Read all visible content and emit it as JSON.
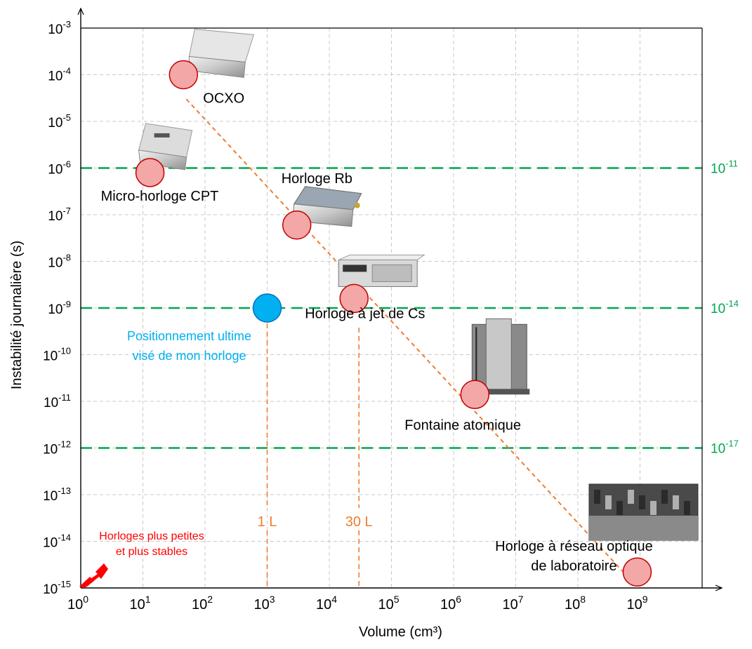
{
  "chart_data": {
    "type": "scatter",
    "xscale": "log",
    "yscale": "log",
    "xlim": [
      1,
      10000000000.0
    ],
    "ylim": [
      1e-15,
      0.001
    ],
    "grid": true,
    "xlabel": "Volume (cm³)",
    "ylabel": "Instabilité journalière (s)",
    "x_ticks": [
      {
        "base": "10",
        "exp": "0",
        "value": 1
      },
      {
        "base": "10",
        "exp": "1",
        "value": 10
      },
      {
        "base": "10",
        "exp": "2",
        "value": 100
      },
      {
        "base": "10",
        "exp": "3",
        "value": 1000
      },
      {
        "base": "10",
        "exp": "4",
        "value": 10000
      },
      {
        "base": "10",
        "exp": "5",
        "value": 100000
      },
      {
        "base": "10",
        "exp": "6",
        "value": 1000000
      },
      {
        "base": "10",
        "exp": "7",
        "value": 10000000
      },
      {
        "base": "10",
        "exp": "8",
        "value": 100000000
      },
      {
        "base": "10",
        "exp": "9",
        "value": 1000000000
      }
    ],
    "y_ticks": [
      {
        "base": "10",
        "exp": "-3",
        "value": 0.001
      },
      {
        "base": "10",
        "exp": "-4",
        "value": 0.0001
      },
      {
        "base": "10",
        "exp": "-5",
        "value": 1e-05
      },
      {
        "base": "10",
        "exp": "-6",
        "value": 1e-06
      },
      {
        "base": "10",
        "exp": "-7",
        "value": 1e-07
      },
      {
        "base": "10",
        "exp": "-8",
        "value": 1e-08
      },
      {
        "base": "10",
        "exp": "-9",
        "value": 1e-09
      },
      {
        "base": "10",
        "exp": "-10",
        "value": 1e-10
      },
      {
        "base": "10",
        "exp": "-11",
        "value": 1e-11
      },
      {
        "base": "10",
        "exp": "-12",
        "value": 1e-12
      },
      {
        "base": "10",
        "exp": "-13",
        "value": 1e-13
      },
      {
        "base": "10",
        "exp": "-14",
        "value": 1e-14
      },
      {
        "base": "10",
        "exp": "-15",
        "value": 1e-15
      }
    ],
    "points": [
      {
        "label": "OCXO",
        "x": 45,
        "y": 0.0001,
        "color": "#f4a7a7",
        "edge": "#c00000",
        "image": "ocxo-box"
      },
      {
        "label": "Micro-horloge CPT",
        "x": 13,
        "y": 8e-07,
        "color": "#f4a7a7",
        "edge": "#c00000",
        "image": "csac-module"
      },
      {
        "label": "Horloge Rb",
        "x": 3000,
        "y": 6e-08,
        "color": "#f4a7a7",
        "edge": "#c00000",
        "image": "rb-clock"
      },
      {
        "label": "Horloge à jet de Cs",
        "x": 25000,
        "y": 1.6e-09,
        "color": "#f4a7a7",
        "edge": "#c00000",
        "image": "cs-clock"
      },
      {
        "label": "Fontaine atomique",
        "x": 2200000,
        "y": 1.4e-11,
        "color": "#f4a7a7",
        "edge": "#c00000",
        "image": "fountain"
      },
      {
        "label": "Horloge à réseau optique\nde laboratoire",
        "x": 900000000,
        "y": 2.2e-15,
        "color": "#f4a7a7",
        "edge": "#c00000",
        "image": "optical-lab"
      },
      {
        "label": "Positionnement ultime\nvisé de mon horloge",
        "x": 1000,
        "y": 1e-09,
        "color": "#00b0f0",
        "edge": "#0070c0",
        "label_color": "#00b0f0"
      }
    ],
    "trend_line": {
      "from": [
        50,
        3e-05
      ],
      "to": [
        700000000,
        1.5e-15
      ],
      "color": "#ed7d31",
      "style": "dashed"
    },
    "stability_lines": [
      {
        "y": 1e-06,
        "label_base": "10",
        "label_exp": "-11"
      },
      {
        "y": 1e-09,
        "label_base": "10",
        "label_exp": "-14"
      },
      {
        "y": 1e-12,
        "label_base": "10",
        "label_exp": "-17"
      }
    ],
    "stability_color": "#00a651",
    "volume_markers": [
      {
        "x": 1000,
        "label": "1 L"
      },
      {
        "x": 30000,
        "label": "30 L"
      }
    ],
    "volume_color": "#ed7d31",
    "corner_note": {
      "lines": [
        "Horloges plus petites",
        "et plus stables"
      ],
      "color": "#ff0000"
    }
  }
}
